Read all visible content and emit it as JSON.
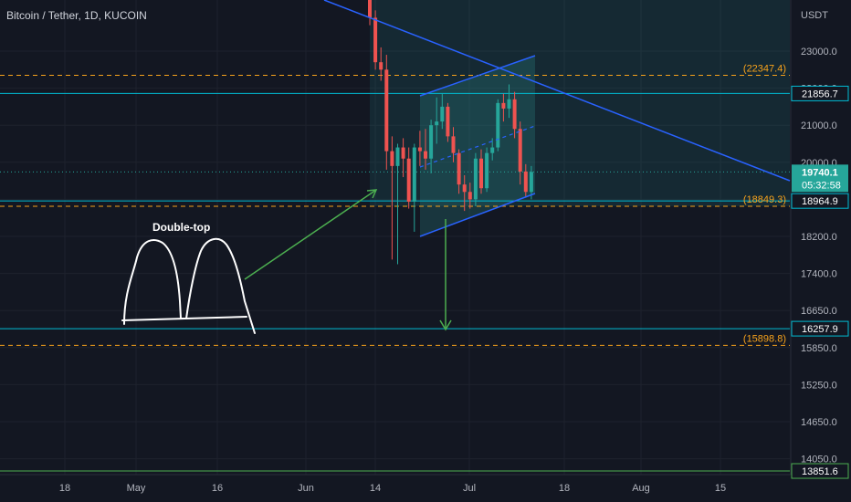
{
  "header": {
    "title": "Bitcoin / Tether, 1D, KUCOIN"
  },
  "chart_data": {
    "type": "candlestick",
    "symbol": "Bitcoin / Tether",
    "interval": "1D",
    "exchange": "KUCOIN",
    "currency": "USDT",
    "ylim": [
      13600,
      25400
    ],
    "price_ticks": [
      23000.0,
      22000.0,
      21000.0,
      20000.0,
      19000.0,
      18200.0,
      17400.0,
      16650.0,
      15850.0,
      15250.0,
      14650.0,
      14050.0
    ],
    "price_tick_labels": [
      "23000.0",
      "22000.0",
      "21000.0",
      "20000.0",
      "19000.0",
      "18200.0",
      "17400.0",
      "16650.0",
      "15850.0",
      "15250.0",
      "14650.0",
      "14050.0"
    ],
    "time_labels": [
      "18",
      "May",
      "16",
      "Jun",
      "14",
      "Jul",
      "18",
      "Aug",
      "15"
    ],
    "current_price": {
      "value": 19740.1,
      "label": "19740.1",
      "countdown": "05:32:58"
    },
    "horizontal_levels": [
      {
        "value": 21856.7,
        "label": "21856.7",
        "style": "solid",
        "color": "#00bcd4"
      },
      {
        "value": 18964.9,
        "label": "18964.9",
        "style": "solid",
        "color": "#00bcd4"
      },
      {
        "value": 16257.9,
        "label": "16257.9",
        "style": "solid",
        "color": "#00bcd4"
      },
      {
        "value": 13851.6,
        "label": "13851.6",
        "style": "solid",
        "color": "#4caf50"
      },
      {
        "value": 22347.4,
        "label": "(22347.4)",
        "style": "dashed",
        "color": "#f7a21b"
      },
      {
        "value": 18849.3,
        "label": "(18849.3)",
        "style": "dashed",
        "color": "#f7a21b"
      },
      {
        "value": 15898.8,
        "label": "(15898.8)",
        "style": "dashed",
        "color": "#f7a21b"
      }
    ],
    "candles": [
      {
        "open": 24900,
        "high": 25350,
        "low": 23700,
        "close": 23900
      },
      {
        "open": 23900,
        "high": 24100,
        "low": 22500,
        "close": 22700
      },
      {
        "open": 22700,
        "high": 23100,
        "low": 22200,
        "close": 22500
      },
      {
        "open": 22500,
        "high": 22900,
        "low": 19800,
        "close": 20300
      },
      {
        "open": 20300,
        "high": 20700,
        "low": 17700,
        "close": 19900
      },
      {
        "open": 19900,
        "high": 20500,
        "low": 17600,
        "close": 20400
      },
      {
        "open": 20400,
        "high": 20650,
        "low": 19600,
        "close": 20100
      },
      {
        "open": 20100,
        "high": 20400,
        "low": 18800,
        "close": 18950
      },
      {
        "open": 18950,
        "high": 20500,
        "low": 18300,
        "close": 20400
      },
      {
        "open": 20400,
        "high": 20850,
        "low": 19900,
        "close": 20300
      },
      {
        "open": 20300,
        "high": 20900,
        "low": 19800,
        "close": 20100
      },
      {
        "open": 20100,
        "high": 21150,
        "low": 19700,
        "close": 21000
      },
      {
        "open": 21000,
        "high": 21750,
        "low": 20500,
        "close": 21100
      },
      {
        "open": 21100,
        "high": 21850,
        "low": 20900,
        "close": 21500
      },
      {
        "open": 21500,
        "high": 21600,
        "low": 20550,
        "close": 20700
      },
      {
        "open": 20700,
        "high": 20950,
        "low": 20000,
        "close": 20250
      },
      {
        "open": 20250,
        "high": 20350,
        "low": 19150,
        "close": 19400
      },
      {
        "open": 19400,
        "high": 19650,
        "low": 18750,
        "close": 19200
      },
      {
        "open": 19200,
        "high": 19450,
        "low": 18800,
        "close": 19000
      },
      {
        "open": 19000,
        "high": 20250,
        "low": 18850,
        "close": 20100
      },
      {
        "open": 20100,
        "high": 20350,
        "low": 19150,
        "close": 19300
      },
      {
        "open": 19300,
        "high": 20400,
        "low": 19200,
        "close": 20250
      },
      {
        "open": 20250,
        "high": 20650,
        "low": 20050,
        "close": 20400
      },
      {
        "open": 20400,
        "high": 21700,
        "low": 20300,
        "close": 21600
      },
      {
        "open": 21600,
        "high": 21850,
        "low": 21100,
        "close": 21450
      },
      {
        "open": 21450,
        "high": 22100,
        "low": 21200,
        "close": 21700
      },
      {
        "open": 21700,
        "high": 21900,
        "low": 20650,
        "close": 20900
      },
      {
        "open": 20900,
        "high": 21100,
        "low": 19400,
        "close": 19750
      },
      {
        "open": 19750,
        "high": 19950,
        "low": 19050,
        "close": 19200
      },
      {
        "open": 19200,
        "high": 19900,
        "low": 19000,
        "close": 19740
      }
    ],
    "annotations": [
      {
        "text": "Double-top"
      }
    ]
  }
}
